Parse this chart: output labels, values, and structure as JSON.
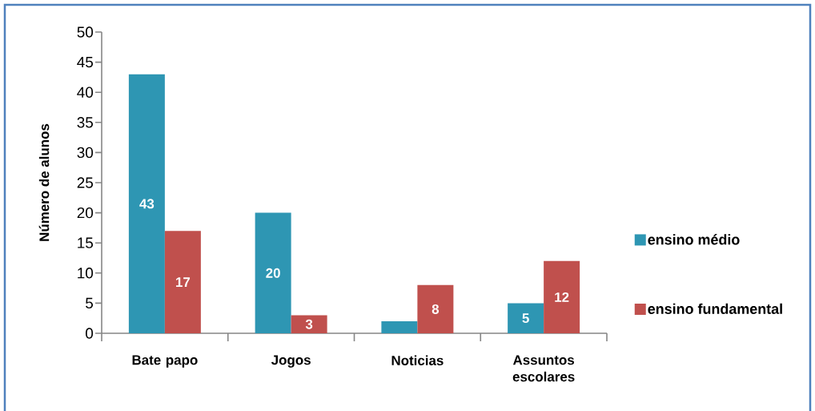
{
  "chart_data": {
    "type": "bar",
    "ylabel": "Número de alunos",
    "categories": [
      "Bate papo",
      "Jogos",
      "Noticias",
      "Assuntos escolares"
    ],
    "series": [
      {
        "name": "ensino médio",
        "color": "#2e96b3",
        "values": [
          43,
          20,
          2,
          5
        ],
        "value_labels": [
          "43",
          "20",
          null,
          "5"
        ]
      },
      {
        "name": "ensino fundamental",
        "color": "#c0504d",
        "values": [
          17,
          3,
          8,
          12
        ],
        "value_labels": [
          "17",
          "3",
          "8",
          "12"
        ]
      }
    ],
    "ylim": [
      0,
      50
    ],
    "yticks": [
      0,
      5,
      10,
      15,
      20,
      25,
      30,
      35,
      40,
      45,
      50
    ],
    "legend": "right"
  }
}
